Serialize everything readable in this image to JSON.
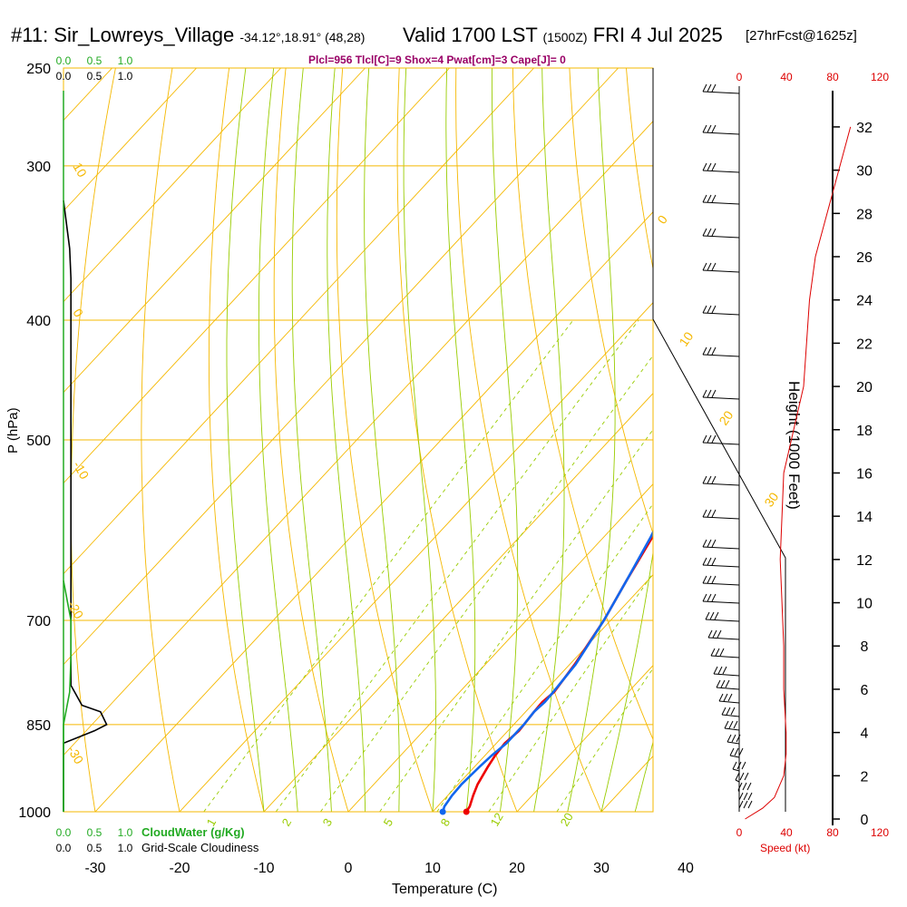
{
  "header": {
    "station": "#11: Sir_Lowreys_Village",
    "coords": "-34.12°,18.91° (48,28)",
    "valid": "Valid 1700 LST",
    "utc": "(1500Z)",
    "date": "FRI 4 Jul 2025",
    "forecast": "[27hrFcst@1625z]",
    "params": "Plcl=956 Tlcl[C]=9 Shox=4 Pwat[cm]=3 Cape[J]= 0"
  },
  "axes_labels": {
    "pressure": "P (hPa)",
    "temperature": "Temperature (C)",
    "height": "Height (1000 Feet)",
    "speed": "Speed (kt)",
    "cloudwater": "CloudWater (g/Kg)",
    "cloudiness": "Grid-Scale Cloudiness"
  },
  "colors": {
    "temperature": "#ee0000",
    "dewpoint": "#1166ee",
    "isobar": "#f5b800",
    "dry_adiabat": "#f5b800",
    "moist_adiabat": "#99cc00",
    "mixing_ratio": "#99cc00",
    "cloudwater": "#22aa22",
    "cloudiness": "#000000",
    "speed": "#dd0000"
  },
  "chart_data": {
    "type": "line",
    "title": "#11: Sir_Lowreys_Village",
    "xlabel": "Temperature (C)",
    "ylabel": "P (hPa)",
    "xlim": [
      -35,
      45
    ],
    "ylim": [
      1000,
      250
    ],
    "pressure_ticks": [
      "250",
      "300",
      "400",
      "500",
      "700",
      "850",
      "1000"
    ],
    "temp_ticks": [
      "-30",
      "-20",
      "-10",
      "0",
      "10",
      "20",
      "30",
      "40"
    ],
    "height_ticks": [
      "0",
      "2",
      "4",
      "6",
      "8",
      "10",
      "12",
      "14",
      "16",
      "18",
      "20",
      "22",
      "24",
      "26",
      "28",
      "30",
      "32"
    ],
    "speed_ticks_top": [
      "0",
      "40",
      "80",
      "120"
    ],
    "speed_ticks_bottom": [
      "0",
      "40",
      "80",
      "120"
    ],
    "cloud_ticks_top_green": [
      "0.0",
      "0.5",
      "1.0"
    ],
    "cloud_ticks_top_black": [
      "0.0",
      "0.5",
      "1.0"
    ],
    "cloud_ticks_bottom_green": [
      "0.0",
      "0.5",
      "1.0"
    ],
    "cloud_ticks_bottom_black": [
      "0.0",
      "0.5",
      "1.0"
    ],
    "dry_adiabat_labels": [
      "10",
      "0",
      "-10",
      "-20",
      "-30",
      "0",
      "10",
      "20",
      "30"
    ],
    "mixing_ratio_labels": [
      "1",
      "2",
      "3",
      "5",
      "8",
      "12",
      "20"
    ],
    "series": [
      {
        "name": "Temperature",
        "pressure": [
          1000,
          990,
          970,
          950,
          920,
          900,
          880,
          860,
          850,
          830,
          815,
          800,
          760,
          700,
          650,
          600,
          550,
          500,
          470,
          430,
          400,
          370,
          340,
          300,
          280,
          265
        ],
        "values": [
          14,
          13.8,
          13.0,
          12.3,
          11.6,
          11.2,
          11.0,
          11.3,
          11.2,
          11.0,
          10.9,
          11.2,
          10.6,
          9.2,
          7.5,
          5.8,
          3.8,
          1.8,
          0.6,
          -1.2,
          -3.0,
          -4.8,
          -6.5,
          -9.0,
          -11.0,
          -12.5
        ]
      },
      {
        "name": "Dewpoint",
        "pressure": [
          1000,
          990,
          970,
          950,
          920,
          900,
          880,
          860,
          850,
          830,
          815,
          800,
          760,
          700,
          650,
          600,
          550,
          500,
          470,
          430,
          400,
          370,
          340,
          300,
          280,
          265
        ],
        "values": [
          11.2,
          10.8,
          10.5,
          10.4,
          10.6,
          10.8,
          11.2,
          11.2,
          11.2,
          11.0,
          11.2,
          11.1,
          10.7,
          9.2,
          7.5,
          5.6,
          3.2,
          1.0,
          -0.5,
          -3.0,
          -6.5,
          -10.0,
          -14.0,
          -22.0,
          -26.0,
          -29.5
        ]
      }
    ],
    "cloud_water": {
      "pressure": [
        1000,
        900,
        850,
        800,
        750,
        700,
        650
      ],
      "values": [
        0,
        0,
        0,
        0.1,
        0.12,
        0.12,
        0
      ]
    },
    "cloudiness": {
      "pressure": [
        1000,
        880,
        860,
        850,
        830,
        820,
        790,
        700,
        600,
        500,
        400,
        370,
        350,
        320
      ],
      "values": [
        0,
        0,
        0.5,
        0.7,
        0.6,
        0.3,
        0.12,
        0.12,
        0.12,
        0.12,
        0.12,
        0.12,
        0.1,
        0
      ]
    },
    "speed_profile": {
      "height_kft": [
        0,
        0.5,
        1,
        2,
        3,
        4,
        6,
        8,
        12,
        16,
        20,
        24,
        26,
        28,
        30,
        32
      ],
      "values": [
        5,
        20,
        30,
        38,
        40,
        40,
        38,
        38,
        35,
        38,
        55,
        60,
        65,
        75,
        85,
        95
      ]
    }
  }
}
